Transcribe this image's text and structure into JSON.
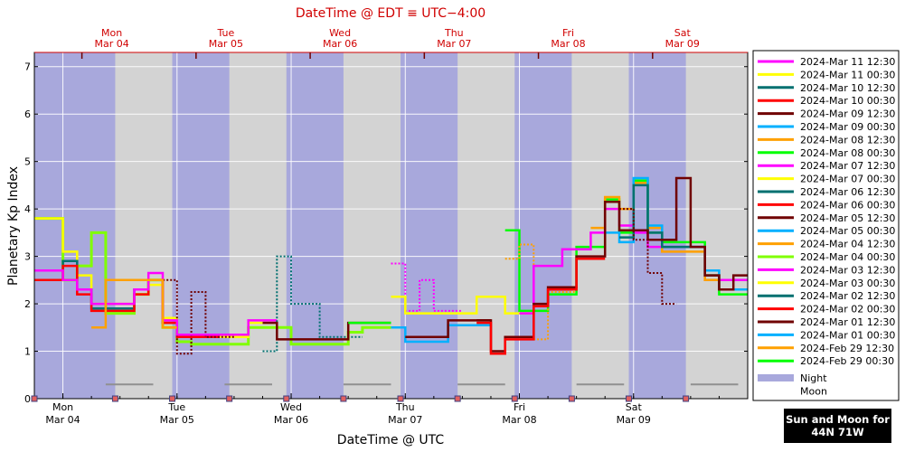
{
  "top_title": "DateTime @ EDT ≡ UTC−4:00",
  "top_day_labels": [
    {
      "day": "Mon",
      "date": "Mar 04"
    },
    {
      "day": "Tue",
      "date": "Mar 05"
    },
    {
      "day": "Wed",
      "date": "Mar 06"
    },
    {
      "day": "Thu",
      "date": "Mar 07"
    },
    {
      "day": "Fri",
      "date": "Mar 08"
    },
    {
      "day": "Sat",
      "date": "Mar 09"
    }
  ],
  "badge": {
    "line1": "Sun and Moon for",
    "line2": "44N 71W"
  },
  "colors": {
    "night": "#a8a8dc",
    "day": "#d3d3d3",
    "moon_bar": "#909090",
    "top_text": "#d00000"
  },
  "chart_data": {
    "type": "line",
    "xlabel": "DateTime @ UTC",
    "ylabel": "Planetary Kp Index",
    "x_range_utc_hours_from": "2024-03-03 18:00 UTC",
    "xlim": [
      "2024-03-03 18:00",
      "2024-03-10 00:00"
    ],
    "ylim": [
      0,
      7.3
    ],
    "y_ticks": [
      0,
      1,
      2,
      3,
      4,
      5,
      6,
      7
    ],
    "x_ticks": [
      {
        "day": "Mon",
        "date": "Mar 04",
        "utc": "2024-03-04 00:00"
      },
      {
        "day": "Tue",
        "date": "Mar 05",
        "utc": "2024-03-05 00:00"
      },
      {
        "day": "Wed",
        "date": "Mar 06",
        "utc": "2024-03-06 00:00"
      },
      {
        "day": "Thu",
        "date": "Mar 07",
        "utc": "2024-03-07 00:00"
      },
      {
        "day": "Fri",
        "date": "Mar 08",
        "utc": "2024-03-08 00:00"
      },
      {
        "day": "Sat",
        "date": "Mar 09",
        "utc": "2024-03-09 00:00"
      }
    ],
    "night_bands_utc": [
      [
        "2024-03-03 18:00",
        "2024-03-04 11:00"
      ],
      [
        "2024-03-04 23:00",
        "2024-03-05 11:00"
      ],
      [
        "2024-03-05 23:00",
        "2024-03-06 11:00"
      ],
      [
        "2024-03-06 23:00",
        "2024-03-07 11:00"
      ],
      [
        "2024-03-07 23:00",
        "2024-03-08 11:00"
      ],
      [
        "2024-03-08 23:00",
        "2024-03-09 11:00"
      ]
    ],
    "moon_bars_utc": [
      [
        "2024-03-04 09:00",
        "2024-03-04 19:00"
      ],
      [
        "2024-03-05 10:00",
        "2024-03-05 20:00"
      ],
      [
        "2024-03-06 11:00",
        "2024-03-06 21:00"
      ],
      [
        "2024-03-07 11:00",
        "2024-03-07 21:00"
      ],
      [
        "2024-03-08 12:00",
        "2024-03-08 22:00"
      ],
      [
        "2024-03-09 12:00",
        "2024-03-09 22:00"
      ]
    ],
    "legend": [
      {
        "name": "2024-Mar 11 12:30",
        "color": "#ff00ff"
      },
      {
        "name": "2024-Mar 11 00:30",
        "color": "#ffff00"
      },
      {
        "name": "2024-Mar 10 12:30",
        "color": "#007070"
      },
      {
        "name": "2024-Mar 10 00:30",
        "color": "#ff0000"
      },
      {
        "name": "2024-Mar 09 12:30",
        "color": "#700000"
      },
      {
        "name": "2024-Mar 09 00:30",
        "color": "#00b0ff"
      },
      {
        "name": "2024-Mar 08 12:30",
        "color": "#ffa000"
      },
      {
        "name": "2024-Mar 08 00:30",
        "color": "#00ff00"
      },
      {
        "name": "2024-Mar 07 12:30",
        "color": "#ff00ff"
      },
      {
        "name": "2024-Mar 07 00:30",
        "color": "#ffff00"
      },
      {
        "name": "2024-Mar 06 12:30",
        "color": "#007070"
      },
      {
        "name": "2024-Mar 06 00:30",
        "color": "#ff0000"
      },
      {
        "name": "2024-Mar 05 12:30",
        "color": "#700000"
      },
      {
        "name": "2024-Mar 05 00:30",
        "color": "#00b0ff"
      },
      {
        "name": "2024-Mar 04 12:30",
        "color": "#ffa000"
      },
      {
        "name": "2024-Mar 04 00:30",
        "color": "#80ff00"
      },
      {
        "name": "2024-Mar 03 12:30",
        "color": "#ff00ff"
      },
      {
        "name": "2024-Mar 03 00:30",
        "color": "#ffff00"
      },
      {
        "name": "2024-Mar 02 12:30",
        "color": "#007070"
      },
      {
        "name": "2024-Mar 02 00:30",
        "color": "#ff0000"
      },
      {
        "name": "2024-Mar 01 12:30",
        "color": "#700000"
      },
      {
        "name": "2024-Mar 01 00:30",
        "color": "#00b0ff"
      },
      {
        "name": "2024-Feb 29 12:30",
        "color": "#ffa000"
      },
      {
        "name": "2024-Feb 29 00:30",
        "color": "#00ff00"
      }
    ],
    "legend_extra": [
      {
        "name": "Night",
        "color": "#a8a8dc"
      },
      {
        "name": "Moon",
        "color": "#ffffff"
      }
    ],
    "series": [
      {
        "color": "#80ff00",
        "width": 3,
        "x": [
          "2024-03-03 18:00",
          "2024-03-04 00:00",
          "2024-03-04 03:00",
          "2024-03-04 06:00",
          "2024-03-04 09:00",
          "2024-03-04 12:00",
          "2024-03-04 15:00",
          "2024-03-04 18:00",
          "2024-03-04 21:00",
          "2024-03-05 00:00",
          "2024-03-05 03:00",
          "2024-03-05 06:00",
          "2024-03-05 09:00",
          "2024-03-05 12:00",
          "2024-03-05 15:00",
          "2024-03-05 18:00",
          "2024-03-05 21:00",
          "2024-03-06 00:00",
          "2024-03-06 03:00",
          "2024-03-06 06:00",
          "2024-03-06 09:00",
          "2024-03-06 12:00",
          "2024-03-06 15:00",
          "2024-03-06 18:00"
        ],
        "y": [
          3.8,
          2.5,
          2.8,
          3.5,
          1.8,
          1.8,
          2.2,
          2.5,
          1.5,
          1.2,
          1.15,
          1.15,
          1.15,
          1.15,
          1.5,
          1.5,
          1.5,
          1.15,
          1.15,
          1.15,
          1.15,
          1.4,
          1.5,
          1.5
        ]
      },
      {
        "color": "#ffff00",
        "width": 2.5,
        "x": [
          "2024-03-03 18:00",
          "2024-03-04 00:00",
          "2024-03-04 03:00",
          "2024-03-04 06:00",
          "2024-03-04 09:00",
          "2024-03-04 12:00",
          "2024-03-04 15:00",
          "2024-03-04 18:00",
          "2024-03-04 21:00",
          "2024-03-05 00:00",
          "2024-03-05 03:00",
          "2024-03-05 06:00",
          "2024-03-05 09:00",
          "2024-03-05 12:00",
          "2024-03-05 15:00",
          "2024-03-05 18:00"
        ],
        "y": [
          3.8,
          3.1,
          2.6,
          2.0,
          2.0,
          2.0,
          2.2,
          2.4,
          1.7,
          1.3,
          1.3,
          1.3,
          1.3,
          1.3,
          1.6,
          1.6
        ]
      },
      {
        "color": "#007070",
        "width": 2.5,
        "x": [
          "2024-03-03 18:00",
          "2024-03-04 00:00",
          "2024-03-04 03:00",
          "2024-03-04 06:00",
          "2024-03-04 09:00",
          "2024-03-04 12:00",
          "2024-03-04 15:00",
          "2024-03-04 18:00",
          "2024-03-04 21:00"
        ],
        "y": [
          2.5,
          2.9,
          2.3,
          1.9,
          1.9,
          1.9,
          2.3,
          2.5,
          1.6
        ]
      },
      {
        "color": "#ff0000",
        "width": 2.5,
        "x": [
          "2024-03-03 18:00",
          "2024-03-04 00:00",
          "2024-03-04 03:00",
          "2024-03-04 06:00",
          "2024-03-04 09:00",
          "2024-03-04 12:00",
          "2024-03-04 15:00",
          "2024-03-04 18:00",
          "2024-03-04 21:00",
          "2024-03-05 00:00",
          "2024-03-05 03:00",
          "2024-03-05 06:00"
        ],
        "y": [
          2.5,
          2.8,
          2.2,
          1.85,
          1.85,
          1.85,
          2.2,
          2.5,
          1.6,
          1.3,
          1.3,
          1.3
        ]
      },
      {
        "color": "#700000",
        "width": 2,
        "dashed": true,
        "x": [
          "2024-03-04 18:00",
          "2024-03-04 21:00",
          "2024-03-05 00:00",
          "2024-03-05 03:00",
          "2024-03-05 06:00",
          "2024-03-05 09:00"
        ],
        "y": [
          2.5,
          2.5,
          0.95,
          2.25,
          1.3,
          1.3
        ]
      },
      {
        "color": "#ff00ff",
        "width": 2.5,
        "x": [
          "2024-03-03 18:00",
          "2024-03-04 00:00",
          "2024-03-04 03:00",
          "2024-03-04 06:00",
          "2024-03-04 09:00",
          "2024-03-04 12:00",
          "2024-03-04 15:00",
          "2024-03-04 18:00",
          "2024-03-04 21:00",
          "2024-03-05 00:00",
          "2024-03-05 03:00",
          "2024-03-05 06:00",
          "2024-03-05 09:00",
          "2024-03-05 12:00",
          "2024-03-05 15:00",
          "2024-03-05 18:00"
        ],
        "y": [
          2.7,
          2.5,
          2.3,
          2.0,
          2.0,
          2.0,
          2.3,
          2.65,
          1.65,
          1.35,
          1.35,
          1.35,
          1.35,
          1.35,
          1.65,
          1.65
        ]
      },
      {
        "color": "#ffa000",
        "width": 2.5,
        "x": [
          "2024-03-04 06:00",
          "2024-03-04 09:00",
          "2024-03-04 12:00",
          "2024-03-04 15:00",
          "2024-03-04 18:00",
          "2024-03-04 21:00"
        ],
        "y": [
          1.5,
          2.5,
          2.5,
          2.5,
          2.5,
          1.5
        ]
      },
      {
        "color": "#007070",
        "width": 2,
        "dashed": true,
        "x": [
          "2024-03-05 18:00",
          "2024-03-05 21:00",
          "2024-03-06 00:00",
          "2024-03-06 03:00",
          "2024-03-06 06:00",
          "2024-03-06 09:00",
          "2024-03-06 12:00"
        ],
        "y": [
          1.0,
          3.0,
          2.0,
          2.0,
          1.3,
          1.3,
          1.3
        ]
      },
      {
        "color": "#700000",
        "width": 2.5,
        "x": [
          "2024-03-05 18:00",
          "2024-03-05 21:00",
          "2024-03-06 00:00",
          "2024-03-06 03:00",
          "2024-03-06 06:00",
          "2024-03-06 09:00",
          "2024-03-06 12:00",
          "2024-03-06 15:00",
          "2024-03-06 18:00"
        ],
        "y": [
          1.6,
          1.25,
          1.25,
          1.25,
          1.25,
          1.25,
          1.6,
          1.6,
          1.6
        ]
      },
      {
        "color": "#00ff00",
        "width": 2.5,
        "x": [
          "2024-03-06 12:00",
          "2024-03-06 15:00",
          "2024-03-06 18:00"
        ],
        "y": [
          1.6,
          1.6,
          1.6
        ]
      },
      {
        "color": "#ff00ff",
        "width": 2,
        "dashed": true,
        "x": [
          "2024-03-06 21:00",
          "2024-03-07 00:00",
          "2024-03-07 03:00",
          "2024-03-07 06:00",
          "2024-03-07 09:00"
        ],
        "y": [
          2.85,
          1.85,
          2.5,
          1.85,
          1.85
        ]
      },
      {
        "color": "#ffff00",
        "width": 2.5,
        "x": [
          "2024-03-06 21:00",
          "2024-03-07 00:00",
          "2024-03-07 03:00",
          "2024-03-07 06:00",
          "2024-03-07 09:00",
          "2024-03-07 12:00",
          "2024-03-07 15:00",
          "2024-03-07 18:00",
          "2024-03-07 21:00",
          "2024-03-08 00:00"
        ],
        "y": [
          2.15,
          1.8,
          1.8,
          1.8,
          1.8,
          1.8,
          2.15,
          2.15,
          1.8,
          1.8
        ]
      },
      {
        "color": "#00b0ff",
        "width": 2.5,
        "x": [
          "2024-03-06 21:00",
          "2024-03-07 00:00",
          "2024-03-07 03:00",
          "2024-03-07 06:00",
          "2024-03-07 09:00",
          "2024-03-07 12:00",
          "2024-03-07 15:00"
        ],
        "y": [
          1.5,
          1.2,
          1.2,
          1.2,
          1.55,
          1.55,
          1.55
        ]
      },
      {
        "color": "#700000",
        "width": 2.5,
        "x": [
          "2024-03-07 00:00",
          "2024-03-07 03:00",
          "2024-03-07 06:00",
          "2024-03-07 09:00",
          "2024-03-07 12:00",
          "2024-03-07 15:00"
        ],
        "y": [
          1.3,
          1.3,
          1.3,
          1.65,
          1.65,
          1.65
        ]
      },
      {
        "color": "#00ff00",
        "width": 2.5,
        "x": [
          "2024-03-07 21:00",
          "2024-03-08 00:00",
          "2024-03-08 03:00",
          "2024-03-08 06:00",
          "2024-03-08 09:00",
          "2024-03-08 12:00",
          "2024-03-08 15:00",
          "2024-03-08 18:00",
          "2024-03-08 21:00",
          "2024-03-09 00:00",
          "2024-03-09 03:00",
          "2024-03-09 06:00",
          "2024-03-09 09:00",
          "2024-03-09 12:00",
          "2024-03-09 15:00",
          "2024-03-09 18:00",
          "2024-03-09 21:00"
        ],
        "y": [
          3.55,
          1.85,
          1.85,
          2.2,
          2.2,
          3.2,
          3.2,
          4.2,
          3.5,
          4.6,
          3.5,
          3.3,
          3.3,
          3.3,
          2.6,
          2.2,
          2.2
        ]
      },
      {
        "color": "#ffa000",
        "width": 2,
        "dashed": true,
        "x": [
          "2024-03-07 21:00",
          "2024-03-08 00:00",
          "2024-03-08 03:00",
          "2024-03-08 06:00",
          "2024-03-08 09:00"
        ],
        "y": [
          2.95,
          3.25,
          1.25,
          2.25,
          2.25
        ]
      },
      {
        "color": "#ff00ff",
        "width": 2.5,
        "x": [
          "2024-03-08 00:00",
          "2024-03-08 03:00",
          "2024-03-08 06:00",
          "2024-03-08 09:00",
          "2024-03-08 12:00",
          "2024-03-08 15:00",
          "2024-03-08 18:00",
          "2024-03-08 21:00",
          "2024-03-09 00:00",
          "2024-03-09 03:00",
          "2024-03-09 06:00",
          "2024-03-09 09:00",
          "2024-03-09 12:00",
          "2024-03-09 15:00",
          "2024-03-09 18:00",
          "2024-03-09 21:00"
        ],
        "y": [
          1.8,
          2.8,
          2.8,
          3.15,
          3.15,
          3.5,
          4.0,
          3.65,
          3.5,
          3.2,
          3.2,
          3.2,
          3.2,
          2.5,
          2.5,
          2.5
        ]
      },
      {
        "color": "#ffa000",
        "width": 2.5,
        "x": [
          "2024-03-08 15:00",
          "2024-03-08 18:00",
          "2024-03-08 21:00",
          "2024-03-09 00:00",
          "2024-03-09 03:00",
          "2024-03-09 06:00",
          "2024-03-09 09:00",
          "2024-03-09 12:00",
          "2024-03-09 15:00",
          "2024-03-09 18:00",
          "2024-03-09 21:00"
        ],
        "y": [
          3.6,
          4.25,
          4.0,
          4.55,
          3.6,
          3.1,
          3.1,
          3.1,
          2.5,
          2.3,
          2.3
        ]
      },
      {
        "color": "#00b0ff",
        "width": 2.5,
        "x": [
          "2024-03-08 18:00",
          "2024-03-08 21:00",
          "2024-03-09 00:00",
          "2024-03-09 03:00",
          "2024-03-09 06:00",
          "2024-03-09 09:00",
          "2024-03-09 12:00",
          "2024-03-09 15:00",
          "2024-03-09 18:00",
          "2024-03-09 21:00"
        ],
        "y": [
          3.5,
          3.3,
          4.65,
          3.65,
          3.2,
          3.2,
          3.2,
          2.7,
          2.3,
          2.3
        ]
      },
      {
        "color": "#007070",
        "width": 2.5,
        "x": [
          "2024-03-08 21:00",
          "2024-03-09 00:00",
          "2024-03-09 03:00",
          "2024-03-09 06:00",
          "2024-03-09 09:00",
          "2024-03-09 12:00",
          "2024-03-09 15:00",
          "2024-03-09 18:00"
        ],
        "y": [
          3.4,
          4.5,
          3.5,
          3.2,
          3.2,
          3.2,
          2.6,
          2.3
        ]
      },
      {
        "color": "#700000",
        "width": 2,
        "dashed": true,
        "x": [
          "2024-03-08 21:00",
          "2024-03-09 00:00",
          "2024-03-09 03:00",
          "2024-03-09 06:00"
        ],
        "y": [
          4.0,
          3.35,
          2.65,
          2.0
        ]
      },
      {
        "color": "#700000",
        "width": 2.5,
        "x": [
          "2024-03-07 15:00",
          "2024-03-07 18:00",
          "2024-03-07 21:00",
          "2024-03-08 00:00",
          "2024-03-08 03:00",
          "2024-03-08 06:00",
          "2024-03-08 09:00",
          "2024-03-08 12:00",
          "2024-03-08 15:00",
          "2024-03-08 18:00",
          "2024-03-08 21:00",
          "2024-03-09 00:00",
          "2024-03-09 03:00",
          "2024-03-09 06:00",
          "2024-03-09 09:00",
          "2024-03-09 12:00",
          "2024-03-09 15:00",
          "2024-03-09 18:00",
          "2024-03-09 21:00"
        ],
        "y": [
          1.65,
          1.0,
          1.3,
          1.3,
          2.0,
          2.35,
          2.35,
          3.0,
          3.0,
          4.15,
          3.55,
          3.55,
          3.35,
          3.35,
          4.65,
          3.2,
          2.6,
          2.3,
          2.6
        ]
      },
      {
        "color": "#ff0000",
        "width": 2.5,
        "x": [
          "2024-03-07 15:00",
          "2024-03-07 18:00",
          "2024-03-07 21:00",
          "2024-03-08 00:00",
          "2024-03-08 03:00",
          "2024-03-08 06:00",
          "2024-03-08 09:00",
          "2024-03-08 12:00",
          "2024-03-08 15:00"
        ],
        "y": [
          1.6,
          0.95,
          1.25,
          1.25,
          1.95,
          2.3,
          2.3,
          2.95,
          2.95
        ]
      }
    ]
  }
}
